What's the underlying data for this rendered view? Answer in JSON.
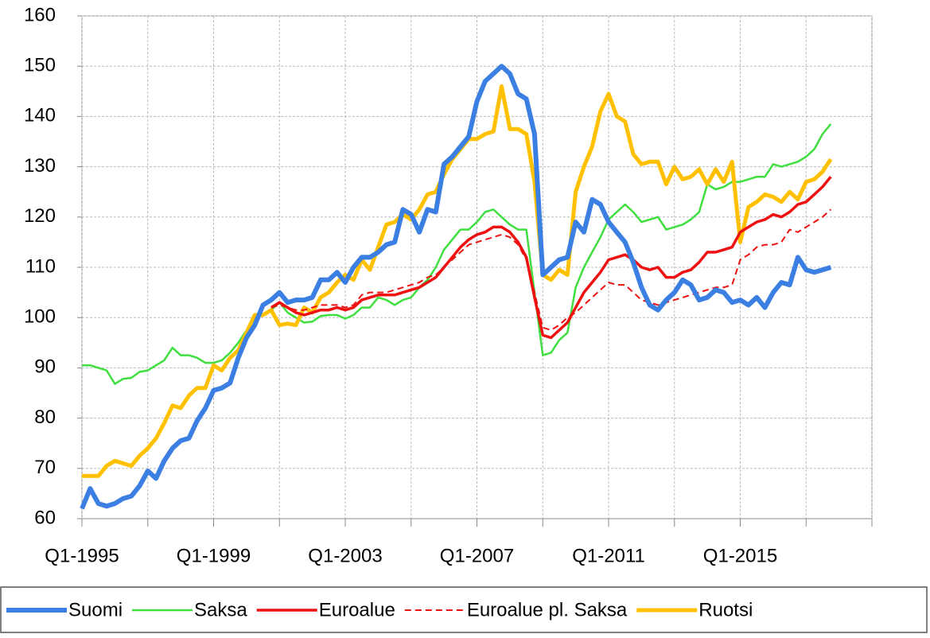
{
  "chart_data": {
    "type": "line",
    "categories": [
      "Q1-1995",
      null,
      null,
      null,
      null,
      null,
      null,
      null,
      null,
      null,
      null,
      null,
      null,
      null,
      null,
      null,
      "Q1-1999",
      null,
      null,
      null,
      null,
      null,
      null,
      null,
      null,
      null,
      null,
      null,
      null,
      null,
      null,
      null,
      "Q1-2003",
      null,
      null,
      null,
      null,
      null,
      null,
      null,
      null,
      null,
      null,
      null,
      null,
      null,
      null,
      null,
      "Q1-2007",
      null,
      null,
      null,
      null,
      null,
      null,
      null,
      null,
      null,
      null,
      null,
      null,
      null,
      null,
      null,
      "Q1-2011",
      null,
      null,
      null,
      null,
      null,
      null,
      null,
      null,
      null,
      null,
      null,
      null,
      null,
      null,
      null,
      "Q1-2015",
      null,
      null,
      null,
      null,
      null,
      null,
      null,
      null,
      null,
      null,
      null
    ],
    "xlim": [
      0,
      96
    ],
    "ylim": [
      60,
      160
    ],
    "yticks": [
      60,
      70,
      80,
      90,
      100,
      110,
      120,
      130,
      140,
      150,
      160
    ],
    "grid": true,
    "series": [
      {
        "name": "Suomi",
        "color": "#3b7fe2",
        "width": 6,
        "dashed": false,
        "values": [
          62,
          66,
          63,
          62.5,
          63,
          64,
          64.5,
          66.5,
          69.5,
          68,
          71.5,
          74,
          75.5,
          76,
          79.5,
          82,
          85.5,
          86,
          87,
          92,
          96,
          98.5,
          102.5,
          103.5,
          105,
          103,
          103.5,
          103.5,
          104,
          107.5,
          107.5,
          109,
          107,
          110,
          112,
          112,
          113,
          114.5,
          115,
          121.5,
          120.5,
          117,
          121.5,
          121,
          130.5,
          132,
          134,
          136,
          143,
          147,
          148.5,
          150,
          148.5,
          144.5,
          143.5,
          136.5,
          108.5,
          110,
          111.5,
          112,
          119,
          117,
          123.5,
          122.5,
          119,
          117,
          115,
          111,
          106,
          102.5,
          101.5,
          103.5,
          105,
          107.5,
          106.5,
          103.5,
          104,
          105.5,
          105,
          103,
          103.5,
          102.5,
          104,
          102,
          105,
          107,
          106.5,
          112,
          109.5,
          109,
          109.5,
          110
        ]
      },
      {
        "name": "Saksa",
        "color": "#3fdf3f",
        "width": 2.5,
        "dashed": false,
        "values": [
          90.5,
          90.5,
          90,
          89.5,
          86.8,
          87.8,
          88,
          89.2,
          89.5,
          90.5,
          91.5,
          94,
          92.5,
          92.5,
          92,
          91,
          91,
          91.5,
          93,
          95,
          97.5,
          100,
          100.5,
          101.5,
          103,
          101,
          100,
          99,
          99.2,
          100.3,
          100.5,
          100.5,
          99.8,
          100.5,
          102,
          102,
          104,
          103.5,
          102.5,
          103.5,
          104,
          106,
          107.5,
          110,
          113.5,
          115.5,
          117.5,
          117.5,
          119,
          121,
          121.5,
          120,
          118.5,
          117.5,
          117.5,
          105,
          92.5,
          93,
          95.5,
          97,
          106,
          110,
          113,
          116,
          119.5,
          121,
          122.5,
          121,
          119,
          119.5,
          120,
          117.5,
          118,
          118.5,
          119.5,
          121,
          126.5,
          125.5,
          126,
          127,
          127,
          127.5,
          128,
          128,
          130.5,
          130,
          130.5,
          131,
          132,
          133.5,
          136.5,
          138.5
        ]
      },
      {
        "name": "Euroalue",
        "color": "#ee1111",
        "width": 3.5,
        "dashed": false,
        "values": [
          null,
          null,
          null,
          null,
          null,
          null,
          null,
          null,
          null,
          null,
          null,
          null,
          null,
          null,
          null,
          null,
          null,
          null,
          null,
          null,
          null,
          null,
          null,
          102,
          103,
          102,
          101,
          100.5,
          101,
          101.5,
          101.5,
          102,
          101.5,
          102,
          103.5,
          104,
          104.5,
          104.5,
          104.5,
          105,
          105.5,
          106,
          107,
          108,
          110,
          112,
          114,
          115.5,
          116.5,
          117,
          118,
          118,
          117,
          115,
          112,
          104,
          96.5,
          96,
          97.5,
          99,
          102,
          105,
          107,
          109,
          111.5,
          112,
          112.5,
          111.5,
          110,
          109.5,
          110,
          108,
          108,
          109,
          109.5,
          111,
          113,
          113,
          113.5,
          114,
          117,
          118,
          119,
          119.5,
          120.5,
          120,
          121,
          122.5,
          123,
          124.5,
          126,
          128
        ]
      },
      {
        "name": "Euroalue pl. Saksa",
        "color": "#ee1111",
        "width": 2,
        "dashed": true,
        "values": [
          null,
          null,
          null,
          null,
          null,
          null,
          null,
          null,
          null,
          null,
          null,
          null,
          null,
          null,
          null,
          null,
          null,
          null,
          null,
          null,
          null,
          null,
          null,
          102,
          102.5,
          102,
          101.5,
          101.5,
          102,
          102.5,
          102.5,
          102.5,
          102,
          102.5,
          104.5,
          105,
          105,
          105,
          105.5,
          106,
          106.5,
          107,
          108,
          108.5,
          110,
          111.5,
          113,
          114.5,
          115,
          115.5,
          116,
          116.5,
          116,
          114.5,
          111.5,
          105,
          98,
          97.5,
          98.5,
          100,
          101,
          102.5,
          104,
          105.5,
          107,
          106.5,
          106.5,
          105,
          103.5,
          103,
          102.5,
          103,
          103.5,
          104,
          104.5,
          105,
          105.5,
          106,
          106,
          106.5,
          111.5,
          112.5,
          114,
          114.5,
          114.5,
          115,
          117.5,
          117,
          118,
          119,
          120,
          121.5
        ]
      },
      {
        "name": "Ruotsi",
        "color": "#ffc000",
        "width": 5,
        "dashed": false,
        "values": [
          68.5,
          68.5,
          68.5,
          70.5,
          71.5,
          71,
          70.5,
          72.5,
          74,
          76,
          79,
          82.5,
          82,
          84.5,
          86,
          86,
          90.5,
          89.5,
          92,
          93.5,
          97,
          100.5,
          100.5,
          101.5,
          98.5,
          98.8,
          98.5,
          102,
          101,
          104,
          105,
          107,
          108.5,
          107.5,
          111.5,
          109.5,
          114,
          118.5,
          119,
          120.5,
          119.5,
          121.5,
          124.5,
          125,
          128.5,
          131.5,
          133.5,
          135.5,
          135.5,
          136.5,
          137,
          146,
          137.5,
          137.5,
          136.5,
          127,
          108.5,
          107.5,
          109.5,
          108.5,
          125,
          130,
          134,
          141,
          144.5,
          140,
          139,
          132.5,
          130.5,
          131,
          131,
          126.5,
          130,
          127.5,
          128,
          129.5,
          126.5,
          129.5,
          127,
          131,
          115,
          122,
          123,
          124.5,
          124,
          123,
          125,
          123.5,
          127,
          127.5,
          129,
          131.5
        ]
      }
    ]
  }
}
